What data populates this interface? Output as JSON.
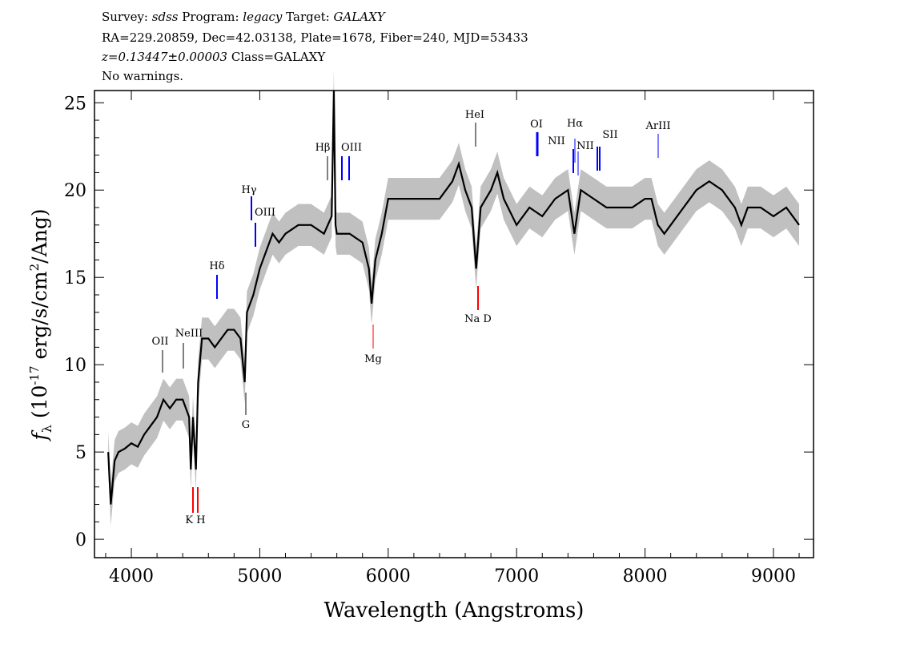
{
  "header": {
    "line1": {
      "survey_label": "Survey: ",
      "survey": "sdss",
      "program_label": " Program: ",
      "program": "legacy",
      "target_label": " Target: ",
      "target": "GALAXY"
    },
    "line2": "RA=229.20859, Dec=42.03138, Plate=1678, Fiber=240, MJD=53433",
    "line3": {
      "redshift": "z=0.13447±0.00003",
      "class": " Class=GALAXY"
    },
    "line4": "No warnings."
  },
  "chart_data": {
    "type": "line",
    "title": "",
    "xlabel": "Wavelength (Angstroms)",
    "ylabel": "f_λ (10^-17 erg/s/cm^2/Ang)",
    "xlim": [
      3713,
      9312
    ],
    "ylim": [
      -1.05,
      25.7
    ],
    "xticks": [
      4000,
      5000,
      6000,
      7000,
      8000,
      9000
    ],
    "yticks": [
      0,
      5,
      10,
      15,
      20,
      25
    ],
    "grid": false,
    "series": [
      {
        "color": "#000000",
        "error_band_color": "#c0c0c0",
        "points": [
          [
            3820,
            5
          ],
          [
            3840,
            2
          ],
          [
            3870,
            4.5
          ],
          [
            3900,
            5
          ],
          [
            3950,
            5.2
          ],
          [
            4000,
            5.5
          ],
          [
            4050,
            5.3
          ],
          [
            4100,
            6
          ],
          [
            4150,
            6.5
          ],
          [
            4200,
            7
          ],
          [
            4250,
            8
          ],
          [
            4300,
            7.5
          ],
          [
            4350,
            8
          ],
          [
            4400,
            8
          ],
          [
            4450,
            7
          ],
          [
            4463,
            4
          ],
          [
            4480,
            7
          ],
          [
            4503,
            4
          ],
          [
            4520,
            9
          ],
          [
            4550,
            11.5
          ],
          [
            4600,
            11.5
          ],
          [
            4650,
            11
          ],
          [
            4700,
            11.5
          ],
          [
            4750,
            12
          ],
          [
            4800,
            12
          ],
          [
            4850,
            11.5
          ],
          [
            4883,
            9
          ],
          [
            4900,
            13
          ],
          [
            4950,
            14
          ],
          [
            5000,
            15.5
          ],
          [
            5050,
            16.5
          ],
          [
            5100,
            17.5
          ],
          [
            5150,
            17
          ],
          [
            5200,
            17.5
          ],
          [
            5300,
            18
          ],
          [
            5400,
            18
          ],
          [
            5500,
            17.5
          ],
          [
            5560,
            18.5
          ],
          [
            5577,
            25.7
          ],
          [
            5590,
            18
          ],
          [
            5600,
            17.5
          ],
          [
            5700,
            17.5
          ],
          [
            5800,
            17
          ],
          [
            5850,
            15.5
          ],
          [
            5871,
            13.5
          ],
          [
            5900,
            16
          ],
          [
            5950,
            17.5
          ],
          [
            6000,
            19.5
          ],
          [
            6100,
            19.5
          ],
          [
            6200,
            19.5
          ],
          [
            6300,
            19.5
          ],
          [
            6400,
            19.5
          ],
          [
            6500,
            20.5
          ],
          [
            6550,
            21.5
          ],
          [
            6600,
            20
          ],
          [
            6650,
            19
          ],
          [
            6685,
            15.5
          ],
          [
            6720,
            19
          ],
          [
            6800,
            20
          ],
          [
            6850,
            21
          ],
          [
            6900,
            19.5
          ],
          [
            7000,
            18
          ],
          [
            7100,
            19
          ],
          [
            7200,
            18.5
          ],
          [
            7300,
            19.5
          ],
          [
            7400,
            20
          ],
          [
            7450,
            17.5
          ],
          [
            7500,
            20
          ],
          [
            7600,
            19.5
          ],
          [
            7700,
            19
          ],
          [
            7800,
            19
          ],
          [
            7900,
            19
          ],
          [
            8000,
            19.5
          ],
          [
            8050,
            19.5
          ],
          [
            8100,
            18
          ],
          [
            8150,
            17.5
          ],
          [
            8200,
            18
          ],
          [
            8300,
            19
          ],
          [
            8400,
            20
          ],
          [
            8500,
            20.5
          ],
          [
            8600,
            20
          ],
          [
            8700,
            19
          ],
          [
            8750,
            18
          ],
          [
            8800,
            19
          ],
          [
            8900,
            19
          ],
          [
            9000,
            18.5
          ],
          [
            9100,
            19
          ],
          [
            9200,
            18
          ]
        ]
      }
    ],
    "line_markers": [
      {
        "label": "OII",
        "wavelength": 4228,
        "color": "#000000"
      },
      {
        "label": "NeIII",
        "wavelength": 4389,
        "color": "#000000"
      },
      {
        "label": "K H",
        "wavelength": 4483,
        "color": "#ff0000"
      },
      {
        "label": "Hδ",
        "wavelength": 4653,
        "color": "#0000ff"
      },
      {
        "label": "G",
        "wavelength": 4883,
        "color": "#000000"
      },
      {
        "label": "Hγ",
        "wavelength": 4925,
        "color": "#0000ff"
      },
      {
        "label": "OIII",
        "wavelength": 4950,
        "color": "#0000ff"
      },
      {
        "label": "Hβ",
        "wavelength": 5515,
        "color": "#000000"
      },
      {
        "label": "OIII",
        "wavelength": 5653,
        "color": "#0000ff"
      },
      {
        "label": "Mg",
        "wavelength": 5871,
        "color": "#ff0000"
      },
      {
        "label": "HeI",
        "wavelength": 6666,
        "color": "#000000"
      },
      {
        "label": "Na D",
        "wavelength": 6685,
        "color": "#ff0000"
      },
      {
        "label": "OI",
        "wavelength": 7147,
        "color": "#0000ff"
      },
      {
        "label": "NII",
        "wavelength": 7428,
        "color": "#0000ff"
      },
      {
        "label": "Hα",
        "wavelength": 7445,
        "color": "#0000ff"
      },
      {
        "label": "NII",
        "wavelength": 7468,
        "color": "#0000ff"
      },
      {
        "label": "SII",
        "wavelength": 7627,
        "color": "#0000ff"
      },
      {
        "label": "ArIII",
        "wavelength": 8094,
        "color": "#0000ff"
      }
    ]
  }
}
